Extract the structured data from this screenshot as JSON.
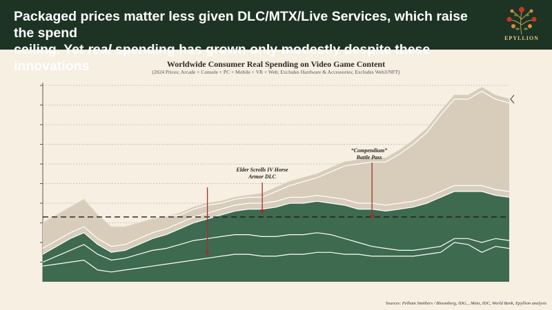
{
  "header": {
    "title_line1": "Packaged prices matter less given DLC/MTX/Live Services, which raise the spend",
    "title_line2_pre": "ceiling. Yet ",
    "title_line2_em": "real",
    "title_line2_post": " spending has grown only modestly despite these innovations",
    "logo_text": "EPYLLION"
  },
  "colors": {
    "header_bg": "#1d3324",
    "background": "#f6efe2",
    "green_band": "#3e6a50",
    "tan_band": "#d8cdbb",
    "arrow": "#a0302e"
  },
  "chart_data": {
    "type": "area",
    "title": "Worldwide Consumer Real Spending on Video Game Content",
    "subtitle": "(2024 Prices; Arcade + Console + PC + Mobile + VR + Web; Excludes Hardware & Accessories; Excludes Web3/NFT)",
    "x_count": 35,
    "ylim": [
      0,
      10
    ],
    "y_gridlines": [
      1,
      2,
      3,
      4,
      5,
      6,
      7,
      8,
      9,
      10
    ],
    "reference_line": 3.3,
    "series": [
      {
        "name": "layer_1",
        "fill": "#3e6a50",
        "values": [
          0.8,
          0.9,
          1.0,
          1.1,
          0.6,
          0.5,
          0.6,
          0.7,
          0.8,
          0.9,
          1.0,
          1.1,
          1.2,
          1.3,
          1.4,
          1.4,
          1.3,
          1.3,
          1.4,
          1.4,
          1.5,
          1.5,
          1.4,
          1.4,
          1.3,
          1.3,
          1.3,
          1.3,
          1.4,
          1.5,
          2.0,
          1.9,
          1.5,
          1.8,
          1.7
        ]
      },
      {
        "name": "layer_2",
        "fill": "#3e6a50",
        "values": [
          0.2,
          0.4,
          0.6,
          0.8,
          0.8,
          0.6,
          0.6,
          0.7,
          0.8,
          0.8,
          0.9,
          1.0,
          1.0,
          1.0,
          1.0,
          1.0,
          1.0,
          1.0,
          1.0,
          1.0,
          1.0,
          0.9,
          0.8,
          0.6,
          0.5,
          0.4,
          0.3,
          0.3,
          0.3,
          0.3,
          0.2,
          0.3,
          0.5,
          0.4,
          0.4
        ]
      },
      {
        "name": "layer_3",
        "fill": "#3e6a50",
        "values": [
          0.4,
          0.5,
          0.6,
          0.6,
          0.5,
          0.4,
          0.4,
          0.5,
          0.6,
          0.7,
          0.8,
          0.9,
          1.0,
          1.1,
          1.2,
          1.3,
          1.4,
          1.5,
          1.6,
          1.6,
          1.6,
          1.6,
          1.7,
          1.7,
          1.9,
          1.9,
          2.1,
          2.2,
          2.3,
          2.5,
          2.4,
          2.4,
          2.6,
          2.2,
          2.2
        ]
      },
      {
        "name": "layer_4",
        "fill": "#d8cdbb",
        "values": [
          0.3,
          0.3,
          0.3,
          0.3,
          0.3,
          0.3,
          0.3,
          0.3,
          0.3,
          0.3,
          0.3,
          0.3,
          0.3,
          0.3,
          0.3,
          0.3,
          0.3,
          0.3,
          0.3,
          0.3,
          0.3,
          0.3,
          0.3,
          0.3,
          0.3,
          0.3,
          0.3,
          0.3,
          0.3,
          0.3,
          0.3,
          0.3,
          0.3,
          0.3,
          0.3
        ]
      },
      {
        "name": "layer_5",
        "fill": "#d8cdbb",
        "values": [
          1.3,
          1.3,
          1.3,
          1.4,
          1.2,
          1.0,
          0.9,
          0.8,
          0.7,
          0.6,
          0.4,
          0.4,
          0.4,
          0.3,
          0.3,
          0.3,
          0.3,
          0.5,
          0.6,
          0.8,
          0.9,
          1.3,
          1.7,
          2.0,
          2.1,
          2.2,
          2.5,
          2.9,
          3.3,
          3.9,
          4.4,
          4.4,
          4.8,
          4.6,
          4.5
        ]
      },
      {
        "name": "layer_6",
        "fill": "#d8cdbb",
        "values": [
          0.0,
          0.0,
          0.0,
          0.0,
          0.0,
          0.0,
          0.0,
          0.0,
          0.0,
          0.0,
          0.1,
          0.1,
          0.1,
          0.1,
          0.1,
          0.1,
          0.2,
          0.2,
          0.2,
          0.2,
          0.2,
          0.2,
          0.2,
          0.2,
          0.2,
          0.2,
          0.2,
          0.2,
          0.2,
          0.2,
          0.2,
          0.2,
          0.2,
          0.2,
          0.2
        ]
      }
    ],
    "annotations": [
      {
        "text_line1": "Elder Scrolls IV Horse",
        "text_line2": "Armor DLC",
        "x_index": 16
      },
      {
        "text_line1": "“Compendium”",
        "text_line2": "Battle Pass",
        "x_index": 24
      }
    ],
    "extra_arrow_x_index": 12
  },
  "sources": "Sources: Pelham Smithers / Bloomberg, IDG,            , Meta, IDC, World Bank, Epyllion analysis"
}
